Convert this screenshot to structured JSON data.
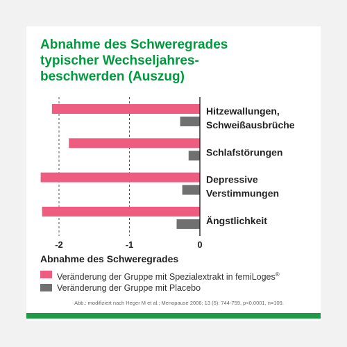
{
  "colors": {
    "title": "#009a3e",
    "treatment": "#ee5d7f",
    "placebo": "#707070",
    "axis_text": "#222222",
    "band": "#1f9a47"
  },
  "chart_data": {
    "type": "bar",
    "orientation": "horizontal",
    "title_lines": [
      "Abnahme des Schweregrades",
      "typischer Wechseljahres-",
      "beschwerden (Auszug)"
    ],
    "xlabel": "Abnahme des Schweregrades",
    "xlim": [
      -2.35,
      0
    ],
    "xticks": [
      -2,
      -1,
      0
    ],
    "xtick_labels": [
      "-2",
      "-1",
      "0"
    ],
    "grid": "vertical dashed",
    "categories": [
      {
        "lines": [
          "Hitzewallungen,",
          "Schweißausbrüche"
        ]
      },
      {
        "lines": [
          "Schlafstörungen"
        ]
      },
      {
        "lines": [
          "Depressive",
          "Verstimmungen"
        ]
      },
      {
        "lines": [
          "Ängstlichkeit"
        ]
      }
    ],
    "series": [
      {
        "name": "Veränderung der Gruppe mit Spezialextrakt in femiLoges®",
        "values": [
          -2.1,
          -1.86,
          -2.26,
          -2.24
        ]
      },
      {
        "name": "Veränderung der Gruppe mit Placebo",
        "values": [
          -0.28,
          -0.16,
          -0.25,
          -0.33
        ]
      }
    ]
  },
  "legend": {
    "treatment_label": "Veränderung der Gruppe mit Spezialextrakt in femiLoges",
    "treatment_sup": "®",
    "placebo_label": "Veränderung der Gruppe mit Placebo"
  },
  "source": "Abb.: modifiziert nach Heger M et al.; Menopause 2006; 13 (5): 744-759, p<0,0001, n=109."
}
